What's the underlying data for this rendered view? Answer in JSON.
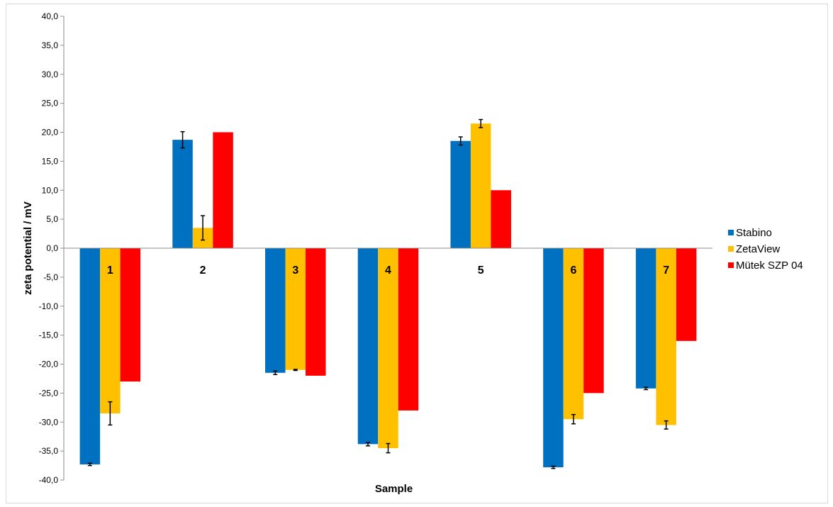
{
  "chart_data": {
    "type": "bar",
    "title": "",
    "xlabel": "Sample",
    "ylabel": "zeta potential / mV",
    "ylim": [
      -40,
      40
    ],
    "ytick_step": 5,
    "ytick_labels": [
      "40,0",
      "35,0",
      "30,0",
      "25,0",
      "20,0",
      "15,0",
      "10,0",
      "5,0",
      "0,0",
      "-5,0",
      "-10,0",
      "-15,0",
      "-20,0",
      "-25,0",
      "-30,0",
      "-35,0",
      "-40,0"
    ],
    "grid": false,
    "legend_position": "right",
    "categories": [
      "1",
      "2",
      "3",
      "4",
      "5",
      "6",
      "7"
    ],
    "series": [
      {
        "name": "Stabino",
        "color": "#0070c0",
        "values": [
          -37.3,
          18.7,
          -21.5,
          -33.8,
          18.5,
          -37.8,
          -24.2
        ],
        "errors": [
          0.2,
          1.4,
          0.3,
          0.3,
          0.7,
          0.2,
          0.2
        ]
      },
      {
        "name": "ZetaView",
        "color": "#ffc000",
        "values": [
          -28.5,
          3.5,
          -21.0,
          -34.5,
          21.5,
          -29.5,
          -30.5
        ],
        "errors": [
          2.0,
          2.1,
          0.1,
          0.8,
          0.7,
          0.8,
          0.7
        ]
      },
      {
        "name": "Mütek SZP 04",
        "color": "#ff0000",
        "values": [
          -23.0,
          20.0,
          -22.0,
          -28.0,
          10.0,
          -25.0,
          -16.0
        ],
        "errors": null
      }
    ]
  }
}
